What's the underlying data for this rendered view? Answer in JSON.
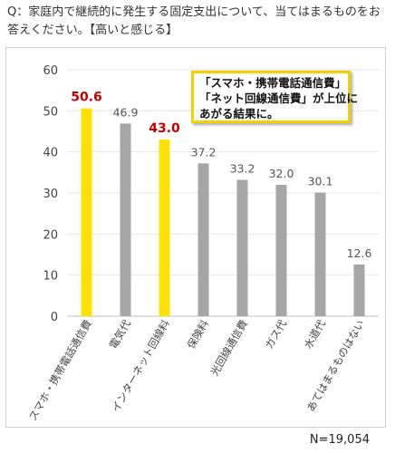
{
  "question": "Q：家庭内で継続的に発生する固定支出について、当てはまるものをお答えください。【高いと感じる】",
  "callout": {
    "line1": "「スマホ・携帯電話通信費」",
    "line2": "「ネット回線通信費」が上位に",
    "line3": "あがる結果に。"
  },
  "sample_size": "N=19,054",
  "colors": {
    "highlight": "#FFE100",
    "default": "#A6A6A6",
    "highlight_label": "#C00000",
    "callout_border": "#F4D000"
  },
  "chart_data": {
    "type": "bar",
    "title": "",
    "xlabel": "",
    "ylabel": "",
    "categories": [
      "スマホ・携帯電話通信費",
      "電気代",
      "インターネット回線料",
      "保険料",
      "光回線通信費",
      "ガス代",
      "水道代",
      "あてはまるものはない"
    ],
    "values": [
      50.6,
      46.9,
      43.0,
      37.2,
      33.2,
      32.0,
      30.1,
      12.6
    ],
    "value_labels": [
      "50.6",
      "46.9",
      "43.0",
      "37.2",
      "33.2",
      "32.0",
      "30.1",
      "12.6"
    ],
    "highlighted": [
      true,
      false,
      true,
      false,
      false,
      false,
      false,
      false
    ],
    "ylim": [
      0,
      60
    ],
    "yticks": [
      0,
      10,
      20,
      30,
      40,
      50,
      60
    ],
    "grid": true,
    "legend": "none"
  }
}
